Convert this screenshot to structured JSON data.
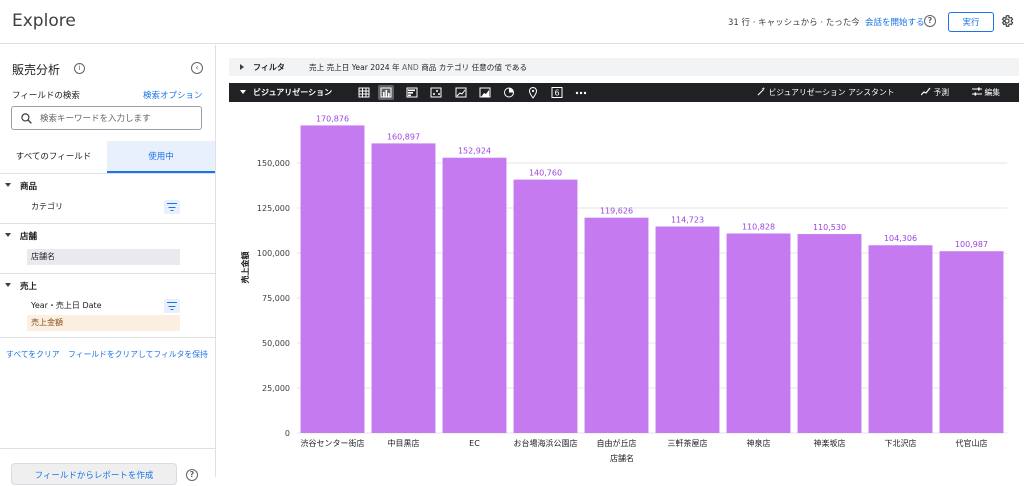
{
  "header": {
    "title": "Explore",
    "status": "31 行 · キャッシュから · たった今",
    "start_session": "会話を開始する",
    "run": "実行"
  },
  "sidebar": {
    "title": "販売分析",
    "search_label": "フィールドの検索",
    "search_options": "検索オプション",
    "search_placeholder": "検索キーワードを入力します",
    "tab_all": "すべてのフィールド",
    "tab_used": "使用中",
    "groups": [
      {
        "name": "商品",
        "fields": [
          "カテゴリ"
        ]
      },
      {
        "name": "店舗",
        "fields": [
          "店舗名"
        ]
      },
      {
        "name": "売上",
        "fields": [
          "Year・売上日 Date",
          "売上金額"
        ]
      }
    ],
    "clear_all": "すべてをクリア",
    "clear_keep": "フィールドをクリアしてフィルタを保持",
    "create_report": "フィールドからレポートを作成"
  },
  "filter_bar": {
    "title": "フィルタ",
    "expr_part1": "売上 売上日 Year 2024 年",
    "expr_and": "AND",
    "expr_part2": "商品 カテゴリ 任意の値 である"
  },
  "viz_bar": {
    "title": "ビジュアリゼーション",
    "icons": [
      "table-icon",
      "bar-chart-icon",
      "column-chart-icon",
      "scatter-icon",
      "line-chart-icon",
      "area-chart-icon",
      "pie-chart-icon",
      "map-pin-icon",
      "single-value-icon",
      "more-icon"
    ],
    "single_value_glyph": "6",
    "more_glyph": "•••",
    "assistant": "ビジュアリゼーション アシスタント",
    "forecast": "予測",
    "edit": "編集"
  },
  "chart_data": {
    "type": "bar",
    "categories": [
      "渋谷センター街店",
      "中目黒店",
      "EC",
      "お台場海浜公園店",
      "自由が丘店",
      "三軒茶屋店",
      "神泉店",
      "神楽坂店",
      "下北沢店",
      "代官山店"
    ],
    "values": [
      170876,
      160897,
      152924,
      140760,
      119626,
      114723,
      110828,
      110530,
      104306,
      100987
    ],
    "value_labels": [
      "170,876",
      "160,897",
      "152,924",
      "140,760",
      "119,626",
      "114,723",
      "110,828",
      "110,530",
      "104,306",
      "100,987"
    ],
    "xlabel": "店舗名",
    "ylabel": "売上金額",
    "ylim": [
      0,
      175000
    ],
    "yticks": [
      0,
      25000,
      50000,
      75000,
      100000,
      125000,
      150000
    ],
    "ytick_labels": [
      "0",
      "25,000",
      "50,000",
      "75,000",
      "100,000",
      "125,000",
      "150,000"
    ],
    "bar_color": "#c57bef",
    "label_color": "#9c44dc",
    "grid": true
  }
}
